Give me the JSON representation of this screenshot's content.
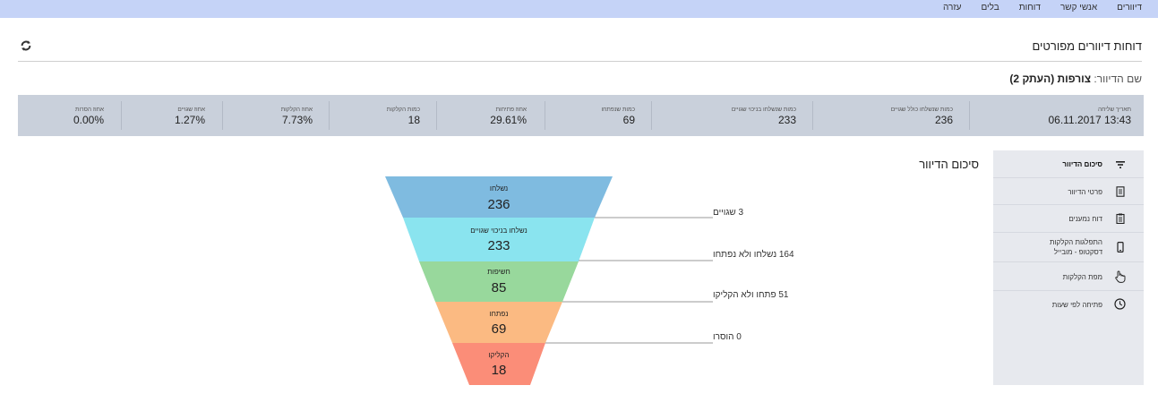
{
  "nav": {
    "items": [
      "דיוורים",
      "אנשי קשר",
      "דוחות",
      "בלים",
      "עזרה"
    ]
  },
  "page": {
    "title": "דוחות דיוורים מפורטים",
    "campaign_label": "שם הדיוור:",
    "campaign_name": "צורפות (העתק 2)"
  },
  "stats": [
    {
      "label": "תאריך שליחה",
      "value": "06.11.2017 13:43"
    },
    {
      "label": "כמות שנשלחו כולל שגויים",
      "value": "236"
    },
    {
      "label": "כמות שנשלחו בניכוי שגויים",
      "value": "233"
    },
    {
      "label": "כמות שנפתחו",
      "value": "69"
    },
    {
      "label": "אחוז פתיחות",
      "value": "29.61%"
    },
    {
      "label": "כמות הקלקות",
      "value": "18"
    },
    {
      "label": "אחוז הקלקות",
      "value": "7.73%"
    },
    {
      "label": "אחוז שגויים",
      "value": "1.27%"
    },
    {
      "label": "אחוז הסרות",
      "value": "0.00%"
    }
  ],
  "sidebar": {
    "items": [
      {
        "label": "סיכום הדיוור",
        "icon": "filter-icon",
        "active": true
      },
      {
        "label": "פרטי הדיוור",
        "icon": "document-icon"
      },
      {
        "label": "דוח נמענים",
        "icon": "clipboard-icon"
      },
      {
        "label": "התפלגות הקלקות",
        "label2": "דסקטופ - מובייל",
        "icon": "mobile-icon"
      },
      {
        "label": "מפת הקלקות",
        "icon": "hand-pointer-icon"
      },
      {
        "label": "פתיחה לפי שעות",
        "icon": "clock-icon"
      }
    ]
  },
  "summary": {
    "title": "סיכום הדיוור"
  },
  "colors": {
    "topbar": "#c5d3f7",
    "statsbar": "#c9d0db",
    "funnel": [
      "#7fbbe0",
      "#8ae4ef",
      "#98d89c",
      "#fbba82",
      "#fb8d78"
    ]
  },
  "funnel": {
    "stages": [
      {
        "label": "נשלחו",
        "value": "236"
      },
      {
        "label": "נשלחו בניכוי שגויים",
        "value": "233"
      },
      {
        "label": "חשיפות",
        "value": "85"
      },
      {
        "label": "נפתחו",
        "value": "69"
      },
      {
        "label": "הקליקו",
        "value": "18"
      }
    ],
    "annotations": [
      "3 שגויים",
      "164 נשלחו ולא נפתחו",
      "51 פתחו ולא הקליקו",
      "0 הוסרו"
    ]
  }
}
